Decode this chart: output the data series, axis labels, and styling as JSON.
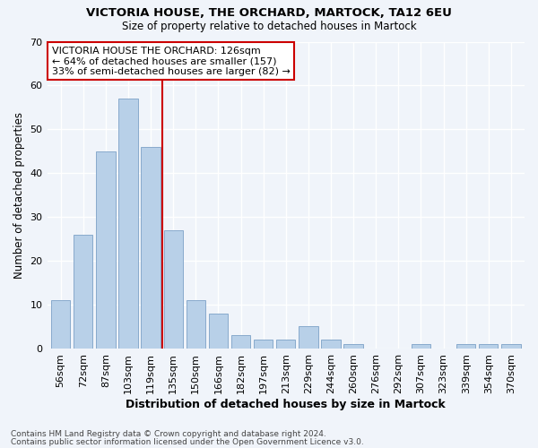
{
  "title1": "VICTORIA HOUSE, THE ORCHARD, MARTOCK, TA12 6EU",
  "title2": "Size of property relative to detached houses in Martock",
  "xlabel": "Distribution of detached houses by size in Martock",
  "ylabel": "Number of detached properties",
  "categories": [
    "56sqm",
    "72sqm",
    "87sqm",
    "103sqm",
    "119sqm",
    "135sqm",
    "150sqm",
    "166sqm",
    "182sqm",
    "197sqm",
    "213sqm",
    "229sqm",
    "244sqm",
    "260sqm",
    "276sqm",
    "292sqm",
    "307sqm",
    "323sqm",
    "339sqm",
    "354sqm",
    "370sqm"
  ],
  "values": [
    11,
    26,
    45,
    57,
    46,
    27,
    11,
    8,
    3,
    2,
    2,
    5,
    2,
    1,
    0,
    0,
    1,
    0,
    1,
    1,
    1
  ],
  "bar_color": "#b8d0e8",
  "bar_edge_color": "#88aacc",
  "reference_line_x": 4.5,
  "reference_line_color": "#cc0000",
  "annotation_text": "VICTORIA HOUSE THE ORCHARD: 126sqm\n← 64% of detached houses are smaller (157)\n33% of semi-detached houses are larger (82) →",
  "annotation_box_color": "#ffffff",
  "annotation_box_edge": "#cc0000",
  "ylim": [
    0,
    70
  ],
  "yticks": [
    0,
    10,
    20,
    30,
    40,
    50,
    60,
    70
  ],
  "footer1": "Contains HM Land Registry data © Crown copyright and database right 2024.",
  "footer2": "Contains public sector information licensed under the Open Government Licence v3.0.",
  "bg_color": "#f0f4fa",
  "plot_bg_color": "#f0f4fa",
  "grid_color": "#ffffff",
  "title1_fontsize": 9.5,
  "title2_fontsize": 8.5,
  "xlabel_fontsize": 9,
  "ylabel_fontsize": 8.5,
  "tick_fontsize": 8,
  "annotation_fontsize": 8,
  "footer_fontsize": 6.5
}
